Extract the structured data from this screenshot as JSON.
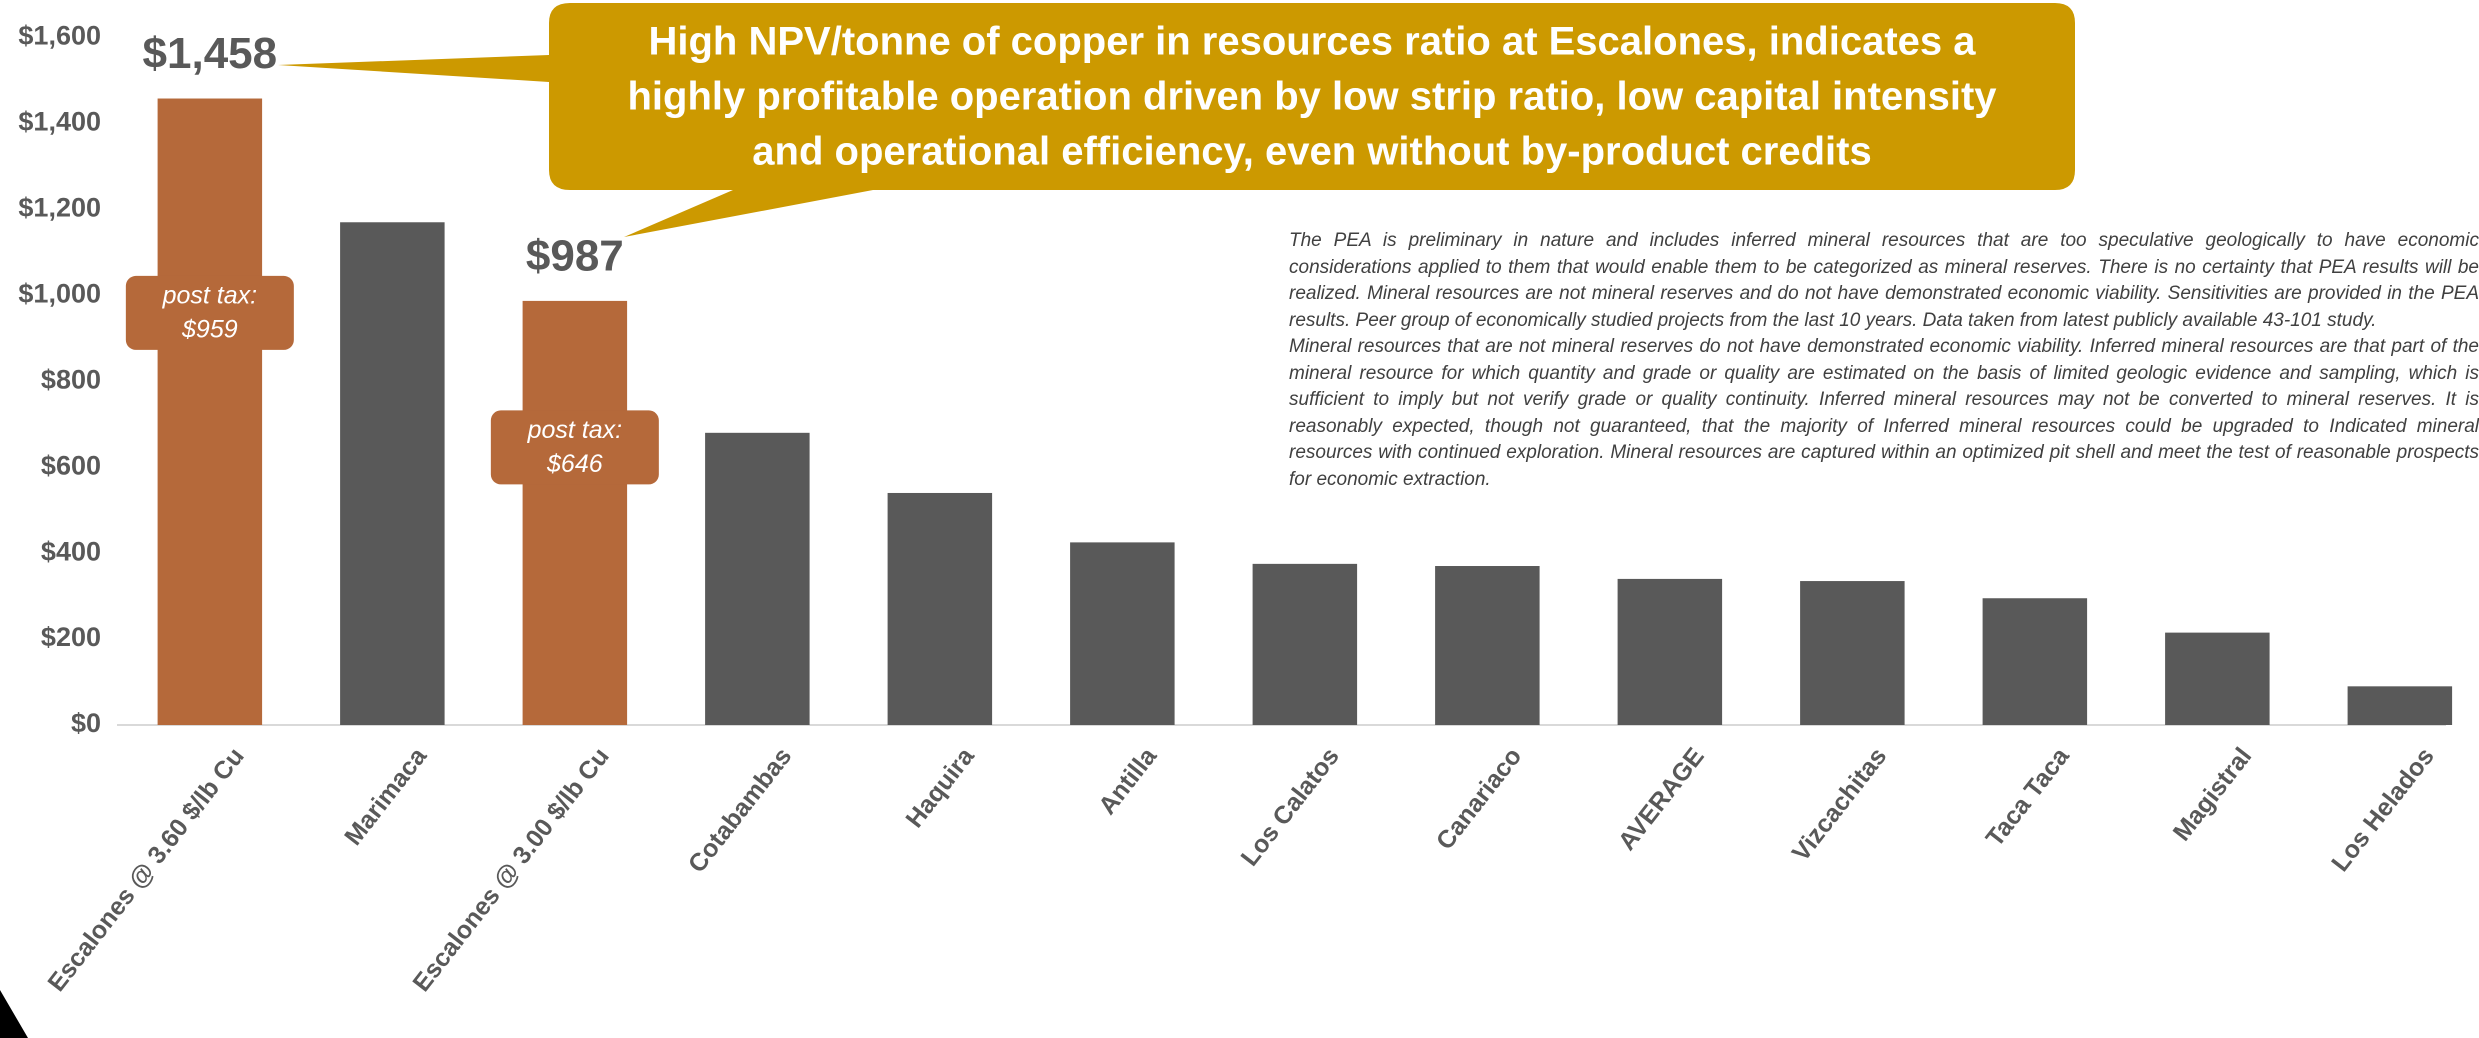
{
  "chart_data": {
    "type": "bar",
    "categories": [
      "Escalones @ 3.60 $/lb Cu",
      "Marimaca",
      "Escalones @ 3.00 $/lb Cu",
      "Cotabambas",
      "Haquira",
      "Antilla",
      "Los Calatos",
      "Canariaco",
      "AVERAGE",
      "Vizcachitas",
      "Taca Taca",
      "Magistral",
      "Los Helados"
    ],
    "values": [
      1458,
      1170,
      987,
      680,
      540,
      425,
      375,
      370,
      340,
      335,
      295,
      215,
      90
    ],
    "value_labels": [
      "$1,458",
      null,
      "$987",
      null,
      null,
      null,
      null,
      null,
      null,
      null,
      null,
      null,
      null
    ],
    "colors": [
      "#b5693a",
      "#595959",
      "#b5693a",
      "#595959",
      "#595959",
      "#595959",
      "#595959",
      "#595959",
      "#595959",
      "#595959",
      "#595959",
      "#595959",
      "#595959"
    ],
    "ylim": [
      0,
      1600
    ],
    "yticks": [
      {
        "value": 0,
        "label": "$0"
      },
      {
        "value": 200,
        "label": "$200"
      },
      {
        "value": 400,
        "label": "$400"
      },
      {
        "value": 600,
        "label": "$600"
      },
      {
        "value": 800,
        "label": "$800"
      },
      {
        "value": 1000,
        "label": "$1,000"
      },
      {
        "value": 1200,
        "label": "$1,200"
      },
      {
        "value": 1400,
        "label": "$1,400"
      },
      {
        "value": 1600,
        "label": "$1,600"
      }
    ],
    "grid": false,
    "post_tax": [
      {
        "category": "Escalones @ 3.60 $/lb Cu",
        "text": "post tax:",
        "value": 959,
        "value_label": "$959"
      },
      {
        "category": "Escalones @ 3.00 $/lb Cu",
        "text": "post tax:",
        "value": 646,
        "value_label": "$646"
      }
    ],
    "callout": [
      "High NPV/tonne of copper in resources ratio at Escalones, indicates a",
      "highly profitable operation driven by low strip ratio, low capital intensity",
      "and operational efficiency, even without by-product credits"
    ],
    "disclaimer": [
      "The PEA is preliminary in nature and includes inferred mineral resources that are too speculative geologically to have economic considerations applied to them that would enable them to be categorized as mineral reserves. There is no certainty that PEA results will be realized. Mineral resources are not mineral reserves and do not have demonstrated economic viability. Sensitivities are provided in the PEA results. Peer group of economically studied projects from the last 10 years. Data taken from latest publicly available 43-101 study.",
      "Mineral resources that are not mineral reserves do not have demonstrated economic viability. Inferred mineral resources are that part of the mineral resource for which quantity and grade or quality are estimated on the basis of limited geologic evidence and sampling, which is sufficient to imply but not verify grade or quality continuity. Inferred mineral resources may not be converted to mineral reserves. It is reasonably expected, though not guaranteed, that the majority of Inferred mineral resources could be upgraded to Indicated mineral resources with continued exploration. Mineral resources are captured within an optimized pit shell and meet the test of reasonable prospects for economic extraction."
    ]
  }
}
